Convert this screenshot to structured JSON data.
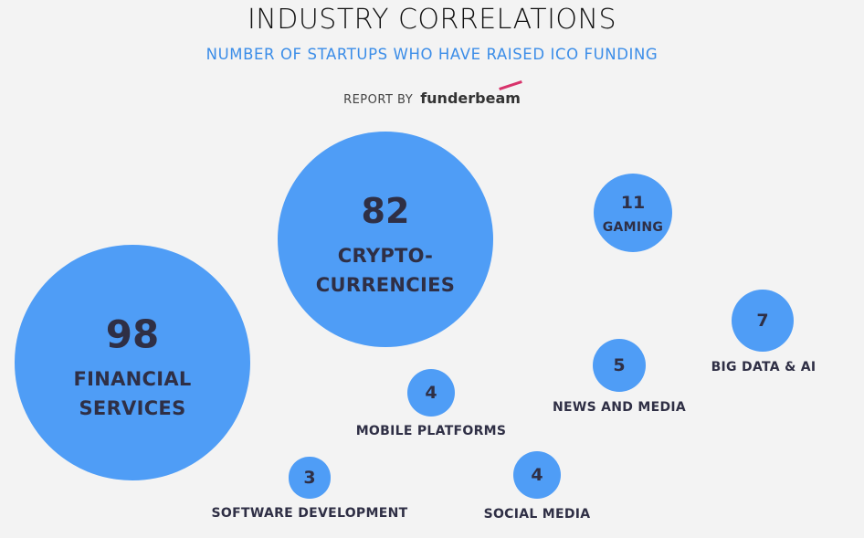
{
  "chart_data": {
    "type": "bubble",
    "title": "INDUSTRY CORRELATIONS",
    "subtitle": "NUMBER OF STARTUPS WHO HAVE RAISED ICO FUNDING",
    "credit": "REPORT BY",
    "brand": "funderbeam",
    "color": "#4f9df6",
    "categories": [
      "FINANCIAL SERVICES",
      "CRYPTO-CURRENCIES",
      "GAMING",
      "BIG DATA & AI",
      "NEWS AND MEDIA",
      "MOBILE PLATFORMS",
      "SOCIAL MEDIA",
      "SOFTWARE DEVELOPMENT"
    ],
    "values": [
      98,
      82,
      11,
      7,
      5,
      4,
      4,
      3
    ]
  }
}
